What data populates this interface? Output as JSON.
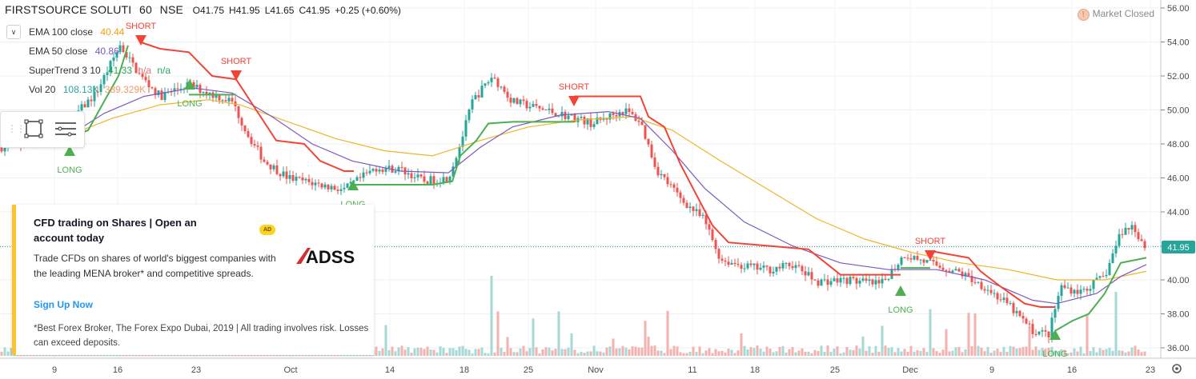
{
  "header": {
    "symbol": "FIRSTSOURCE SOLUTI",
    "interval": "60",
    "exchange": "NSE",
    "open": "O41.75",
    "high": "H41.95",
    "low": "L41.65",
    "close": "C41.95",
    "change": "+0.25 (+0.60%)"
  },
  "indicators": [
    {
      "label": "EMA 100 close",
      "values": [
        "40.44"
      ],
      "color": "#f0a30a"
    },
    {
      "label": "EMA 50 close",
      "values": [
        "40.86"
      ],
      "color": "#7e57c2"
    },
    {
      "label": "SuperTrend 3 10",
      "values": [
        "41.33",
        "n/a",
        "n/a"
      ],
      "color": "#26a65b"
    },
    {
      "label": "Vol 20",
      "values": [
        "108.13K",
        "389.329K"
      ],
      "color": "#26a69a"
    }
  ],
  "market_status": {
    "label": "Market Closed",
    "icon": "info-icon",
    "icon_glyph": "!"
  },
  "price_axis": {
    "labels": [
      "56.00",
      "54.00",
      "52.00",
      "50.00",
      "48.00",
      "46.00",
      "44.00",
      "42.00",
      "40.00",
      "38.00",
      "36.00"
    ],
    "current": "41.95"
  },
  "time_axis": {
    "labels": [
      "9",
      "16",
      "23",
      "Oct",
      "14",
      "18",
      "25",
      "Nov",
      "11",
      "18",
      "25",
      "Dec",
      "9",
      "16",
      "23"
    ]
  },
  "signals": [
    {
      "label": "LONG",
      "kind": "long"
    },
    {
      "label": "SHORT",
      "kind": "short"
    },
    {
      "label": "LONG",
      "kind": "long"
    },
    {
      "label": "SHORT",
      "kind": "short"
    },
    {
      "label": "LONG",
      "kind": "long"
    },
    {
      "label": "SHORT",
      "kind": "short"
    },
    {
      "label": "LONG",
      "kind": "long"
    },
    {
      "label": "SHORT",
      "kind": "short"
    },
    {
      "label": "LONG",
      "kind": "long"
    }
  ],
  "toolbox": {
    "tools": [
      "rectangle-icon",
      "menu-lines-icon"
    ]
  },
  "ad": {
    "title": "CFD trading on Shares | Open an account today",
    "badge": "AD",
    "body": "Trade CFDs on shares of world's biggest companies with the leading MENA broker* and competitive spreads.",
    "cta": "Sign Up Now",
    "disclaimer": "*Best Forex Broker, The Forex Expo Dubai, 2019 | All trading involves risk. Losses can exceed deposits.",
    "logo_text": "ADSS"
  },
  "colors": {
    "up": "#26a69a",
    "down": "#ef5350",
    "supertrend_up": "#4caf50",
    "supertrend_down": "#f44336",
    "ema100": "#f0b429",
    "ema50": "#7e57c2",
    "price_badge": "#26a69a"
  }
}
